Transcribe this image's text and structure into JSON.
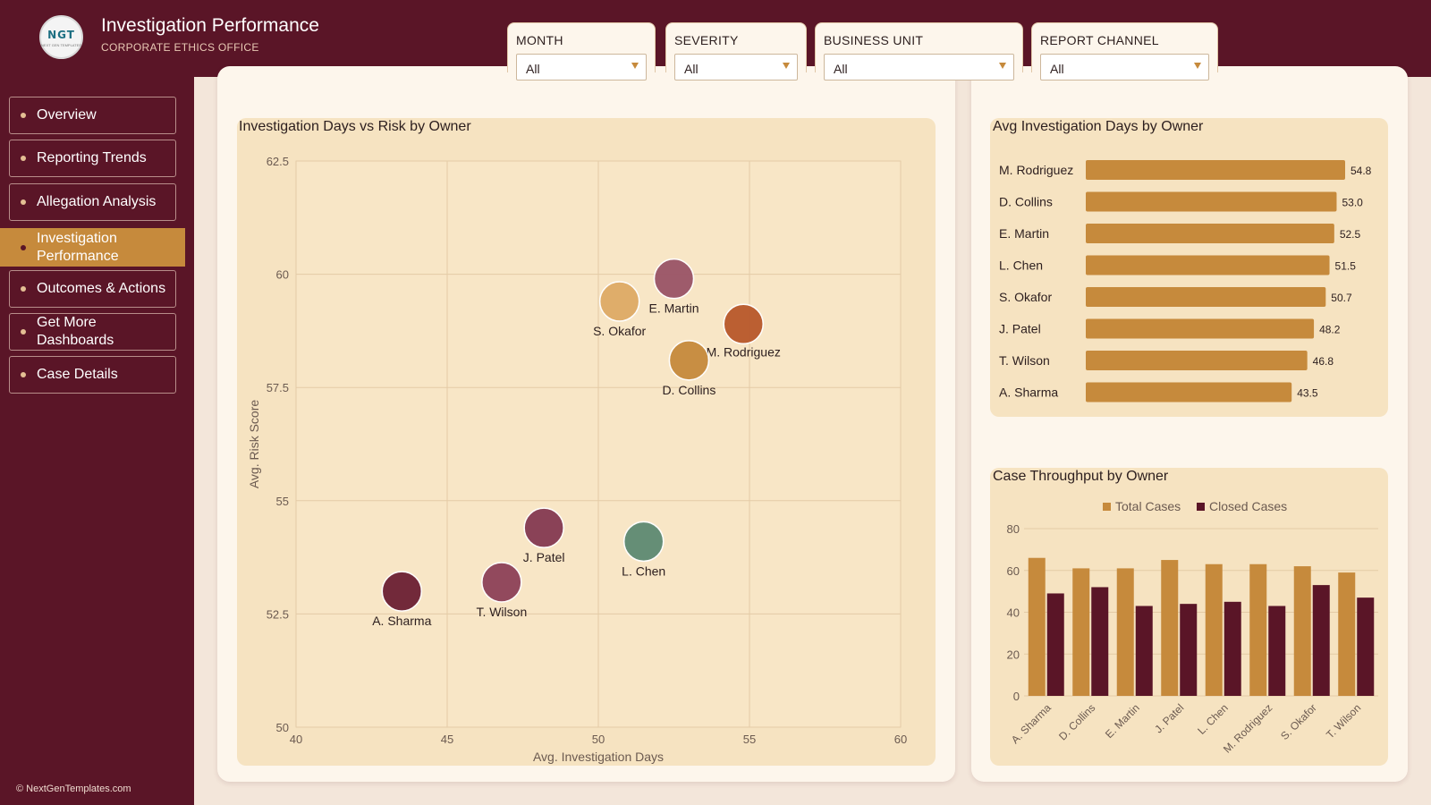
{
  "header": {
    "logo_text": "NGT",
    "logo_subtext": "NEXT GEN TEMPLATES",
    "title": "Investigation Performance",
    "subtitle": "CORPORATE ETHICS OFFICE"
  },
  "filters": [
    {
      "label": "MONTH",
      "value": "All"
    },
    {
      "label": "SEVERITY",
      "value": "All"
    },
    {
      "label": "BUSINESS UNIT",
      "value": "All"
    },
    {
      "label": "REPORT CHANNEL",
      "value": "All"
    }
  ],
  "sidebar": {
    "items": [
      {
        "label": "Overview",
        "active": false
      },
      {
        "label": "Reporting Trends",
        "active": false
      },
      {
        "label": "Allegation Analysis",
        "active": false
      },
      {
        "label": "Investigation Performance",
        "active": true
      },
      {
        "label": "Outcomes & Actions",
        "active": false
      },
      {
        "label": "Get More Dashboards",
        "active": false
      },
      {
        "label": "Case Details",
        "active": false
      }
    ],
    "copyright": "© NextGenTemplates.com"
  },
  "colors": {
    "maroon": "#5a1527",
    "gold": "#c68a3c",
    "card_bg": "#f6e3c1",
    "panel_bg": "#fdf6ec"
  },
  "chart_data": [
    {
      "type": "scatter",
      "title": "Investigation Days vs Risk by Owner",
      "xlabel": "Avg. Investigation Days",
      "ylabel": "Avg. Risk Score",
      "xlim": [
        40,
        60
      ],
      "ylim": [
        50,
        62.5
      ],
      "x_ticks": [
        "40",
        "45",
        "50",
        "55",
        "60"
      ],
      "y_ticks": [
        "50",
        "52.5",
        "55",
        "57.5",
        "60",
        "62.5"
      ],
      "grid": true,
      "points": [
        {
          "label": "A. Sharma",
          "x": 43.5,
          "y": 53.0,
          "color": "#6b1f33"
        },
        {
          "label": "T. Wilson",
          "x": 46.8,
          "y": 53.2,
          "color": "#8d4158"
        },
        {
          "label": "J. Patel",
          "x": 48.2,
          "y": 54.4,
          "color": "#853a52"
        },
        {
          "label": "L. Chen",
          "x": 51.5,
          "y": 54.1,
          "color": "#5e8a72"
        },
        {
          "label": "S. Okafor",
          "x": 50.7,
          "y": 59.4,
          "color": "#deaa66"
        },
        {
          "label": "E. Martin",
          "x": 52.5,
          "y": 59.9,
          "color": "#9a5467"
        },
        {
          "label": "M. Rodriguez",
          "x": 54.8,
          "y": 58.9,
          "color": "#b8582b"
        },
        {
          "label": "D. Collins",
          "x": 53.0,
          "y": 58.1,
          "color": "#c68a3c"
        }
      ]
    },
    {
      "type": "bar",
      "title": "Avg Investigation Days by Owner",
      "orientation": "horizontal",
      "categories": [
        "M. Rodriguez",
        "D. Collins",
        "E. Martin",
        "L. Chen",
        "S. Okafor",
        "J. Patel",
        "T. Wilson",
        "A. Sharma"
      ],
      "values": [
        54.8,
        53.0,
        52.5,
        51.5,
        50.7,
        48.2,
        46.8,
        43.5
      ],
      "value_labels": [
        "54.8",
        "53.0",
        "52.5",
        "51.5",
        "50.7",
        "48.2",
        "46.8",
        "43.5"
      ],
      "xlim": [
        0,
        54.8
      ],
      "color": "#c68a3c"
    },
    {
      "type": "bar",
      "title": "Case Throughput by Owner",
      "categories": [
        "A. Sharma",
        "D. Collins",
        "E. Martin",
        "J. Patel",
        "L. Chen",
        "M. Rodriguez",
        "S. Okafor",
        "T. Wilson"
      ],
      "series": [
        {
          "name": "Total Cases",
          "color": "#c68a3c",
          "values": [
            66,
            61,
            61,
            65,
            63,
            63,
            62,
            59
          ]
        },
        {
          "name": "Closed Cases",
          "color": "#5a1527",
          "values": [
            49,
            52,
            43,
            44,
            45,
            43,
            53,
            47
          ]
        }
      ],
      "ylim": [
        0,
        80
      ],
      "y_ticks": [
        "0",
        "20",
        "40",
        "60",
        "80"
      ],
      "legend": "top-center",
      "grid": true
    }
  ]
}
